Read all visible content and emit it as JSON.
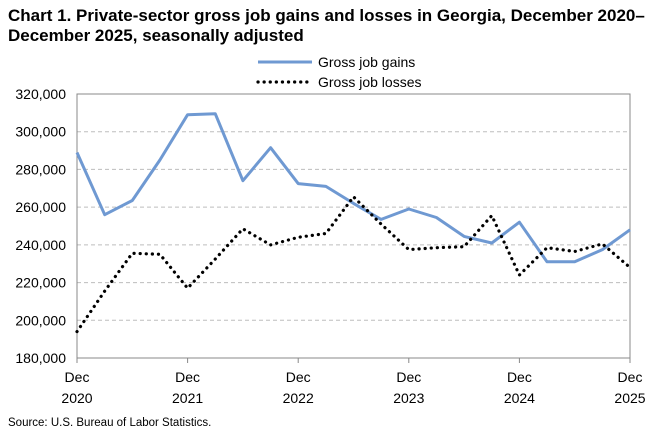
{
  "chart_data": {
    "type": "line",
    "title": "Chart 1. Private-sector gross job gains and losses in Georgia, December 2020–December 2025, seasonally adjusted",
    "xlabel": "",
    "ylabel": "",
    "ylim": [
      180000,
      320000
    ],
    "yticks": [
      "180,000",
      "200,000",
      "220,000",
      "240,000",
      "260,000",
      "280,000",
      "300,000",
      "320,000"
    ],
    "ytick_values": [
      180000,
      200000,
      220000,
      240000,
      260000,
      280000,
      300000,
      320000
    ],
    "xticks": [
      {
        "month": "Dec",
        "year": "2020"
      },
      {
        "month": "Dec",
        "year": "2021"
      },
      {
        "month": "Dec",
        "year": "2022"
      },
      {
        "month": "Dec",
        "year": "2023"
      },
      {
        "month": "Dec",
        "year": "2024"
      },
      {
        "month": "Dec",
        "year": "2025"
      }
    ],
    "grid": true,
    "legend_position": "top",
    "x": [
      "Dec 2020",
      "Mar 2021",
      "Jun 2021",
      "Sep 2021",
      "Dec 2021",
      "Mar 2022",
      "Jun 2022",
      "Sep 2022",
      "Dec 2022",
      "Mar 2023",
      "Jun 2023",
      "Sep 2023",
      "Dec 2023",
      "Mar 2024",
      "Jun 2024",
      "Sep 2024",
      "Dec 2024",
      "Mar 2025",
      "Jun 2025",
      "Sep 2025",
      "Dec 2025"
    ],
    "series": [
      {
        "name": "Gross job gains",
        "color": "#6f99d2",
        "style": "solid",
        "values": [
          289000,
          256000,
          263500,
          285000,
          309000,
          309500,
          274000,
          291500,
          272500,
          271000,
          262000,
          253500,
          259000,
          254500,
          244500,
          241000,
          252000,
          231000,
          231000,
          237500,
          248000
        ]
      },
      {
        "name": "Gross job losses",
        "color": "#000000",
        "style": "dotted",
        "values": [
          194000,
          215500,
          235500,
          235000,
          217000,
          232500,
          248500,
          240000,
          244000,
          246000,
          265500,
          251000,
          237500,
          238500,
          239000,
          255500,
          224000,
          238500,
          236500,
          240500,
          228000
        ]
      }
    ]
  },
  "source": "Source: U.S. Bureau of Labor Statistics."
}
